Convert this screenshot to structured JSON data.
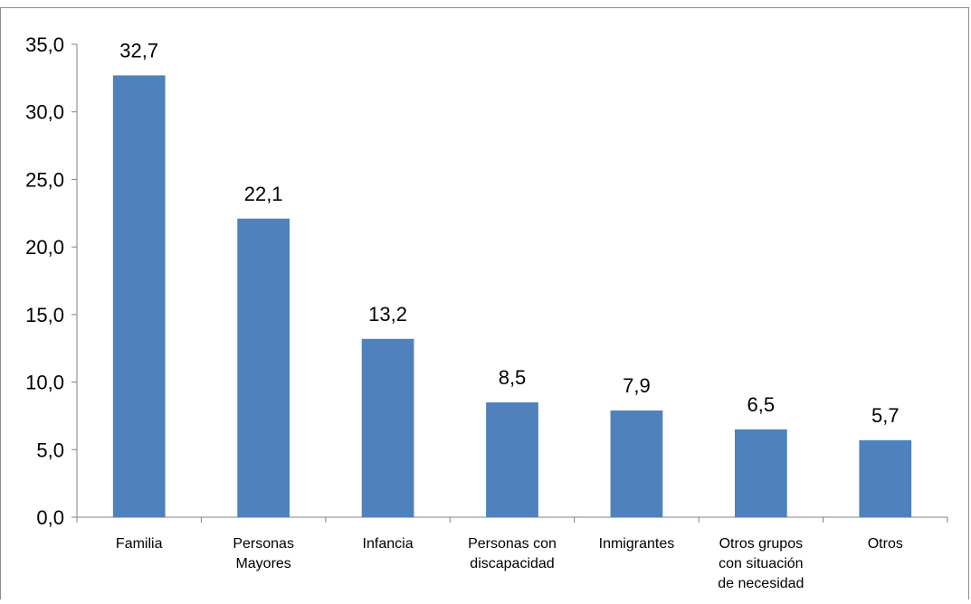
{
  "chart_data": {
    "type": "bar",
    "categories": [
      [
        "Familia"
      ],
      [
        "Personas",
        "Mayores"
      ],
      [
        "Infancia"
      ],
      [
        "Personas con",
        "discapacidad"
      ],
      [
        "Inmigrantes"
      ],
      [
        "Otros grupos",
        "con situación",
        "de necesidad"
      ],
      [
        "Otros"
      ]
    ],
    "values": [
      32.7,
      22.1,
      13.2,
      8.5,
      7.9,
      6.5,
      5.7
    ],
    "value_labels": [
      "32,7",
      "22,1",
      "13,2",
      "8,5",
      "7,9",
      "6,5",
      "5,7"
    ],
    "y_ticks": [
      "0,0",
      "5,0",
      "10,0",
      "15,0",
      "20,0",
      "25,0",
      "30,0",
      "35,0"
    ],
    "ylim": [
      0,
      35
    ],
    "bar_color": "#4F81BD",
    "grid": false,
    "legend": false
  }
}
